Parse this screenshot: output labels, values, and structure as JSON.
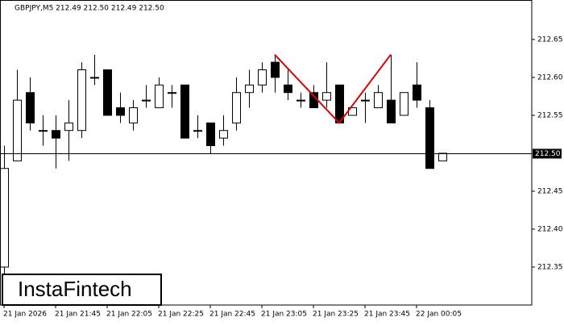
{
  "chart_data": {
    "type": "candlestick",
    "title": "GBPJPY,M5  212.49 212.50 212.49 212.50",
    "categories": [
      "21 Jan 2026",
      null,
      null,
      null,
      "21 Jan 21:45",
      null,
      null,
      null,
      "21 Jan 22:05",
      null,
      null,
      null,
      "21 Jan 22:25",
      null,
      null,
      null,
      "21 Jan 22:45",
      null,
      null,
      null,
      "21 Jan 23:05",
      null,
      null,
      null,
      "21 Jan 23:25",
      null,
      null,
      null,
      "21 Jan 23:45",
      null,
      null,
      null,
      "22 Jan 00:05",
      null,
      null
    ],
    "open": [
      212.35,
      212.49,
      212.58,
      212.53,
      212.53,
      212.53,
      212.53,
      212.6,
      212.61,
      212.56,
      212.54,
      212.57,
      212.56,
      212.58,
      212.59,
      212.53,
      212.54,
      212.52,
      212.54,
      212.58,
      212.59,
      212.62,
      212.59,
      212.57,
      212.58,
      212.57,
      212.59,
      212.55,
      212.57,
      212.56,
      212.57,
      212.55,
      212.59,
      212.56,
      212.49
    ],
    "high": [
      212.51,
      212.61,
      212.6,
      212.55,
      212.55,
      212.57,
      212.62,
      212.63,
      212.61,
      212.58,
      212.57,
      212.59,
      212.6,
      212.59,
      212.59,
      212.55,
      212.54,
      212.55,
      212.6,
      212.61,
      212.62,
      212.63,
      212.61,
      212.58,
      212.59,
      212.62,
      212.59,
      212.56,
      212.58,
      212.59,
      212.63,
      212.58,
      212.62,
      212.57,
      212.5
    ],
    "low": [
      212.3,
      212.49,
      212.53,
      212.51,
      212.48,
      212.49,
      212.52,
      212.59,
      212.55,
      212.54,
      212.53,
      212.56,
      212.56,
      212.56,
      212.52,
      212.52,
      212.5,
      212.51,
      212.53,
      212.56,
      212.58,
      212.58,
      212.57,
      212.56,
      212.56,
      212.56,
      212.54,
      212.55,
      212.54,
      212.56,
      212.54,
      212.55,
      212.56,
      212.48,
      212.49
    ],
    "close": [
      212.48,
      212.57,
      212.54,
      212.53,
      212.52,
      212.54,
      212.61,
      212.6,
      212.55,
      212.55,
      212.56,
      212.57,
      212.59,
      212.58,
      212.52,
      212.53,
      212.51,
      212.53,
      212.58,
      212.59,
      212.61,
      212.6,
      212.58,
      212.57,
      212.56,
      212.58,
      212.54,
      212.56,
      212.57,
      212.58,
      212.54,
      212.58,
      212.57,
      212.48,
      212.5
    ],
    "ylim": [
      212.3,
      212.702
    ],
    "yticks": [
      212.35,
      {
        "value": 212.4,
        "label": "212.40"
      },
      212.45,
      212.55,
      {
        "value": 212.6,
        "label": "212.60"
      },
      212.65
    ],
    "current_price": {
      "value": 212.5,
      "label": "212.50"
    },
    "pattern": {
      "color": "#e00000",
      "indices": [
        21,
        26,
        30
      ],
      "values": [
        212.63,
        212.54,
        212.63
      ]
    },
    "watermark": "InstaFintech"
  }
}
